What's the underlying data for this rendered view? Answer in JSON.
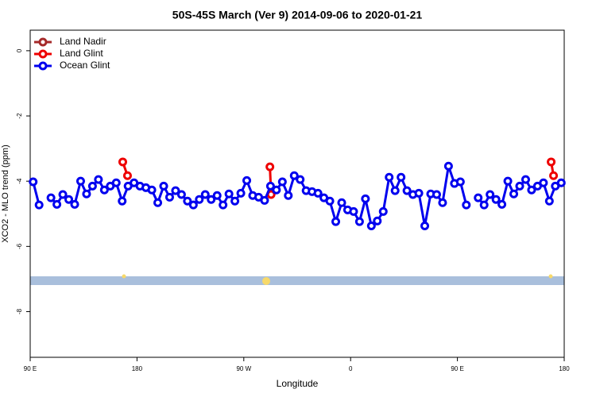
{
  "chart_data": {
    "type": "line",
    "title": "50S-45S March (Ver 9)   2014-09-06 to 2020-01-21",
    "x_label": "Longitude",
    "y_label": "XCO2 - MLO trend (ppm)",
    "xlim": [
      90,
      540
    ],
    "ylim": [
      -9.4,
      0.63
    ],
    "xticks": [
      {
        "value": 90,
        "label": "90 E"
      },
      180,
      {
        "value": 270,
        "label": "90 W"
      },
      {
        "value": 360,
        "label": "0"
      },
      {
        "value": 450,
        "label": "90 E"
      },
      {
        "value": 540,
        "label": "180"
      }
    ],
    "yticks": [
      0,
      -2,
      -4,
      -6,
      -8
    ],
    "legend_position": "top-left",
    "series": [
      {
        "name": "Land Nadir",
        "color": "#a52a2a",
        "x": [],
        "values": []
      },
      {
        "name": "Land Glint",
        "color": "#ee0000",
        "x": [
          168,
          172,
          null,
          292,
          293,
          null,
          529,
          531
        ],
        "values": [
          -3.41,
          -3.83,
          null,
          -3.56,
          -4.41,
          null,
          -3.41,
          -3.83
        ]
      },
      {
        "name": "Ocean Glint",
        "color": "#0000ee",
        "x": [
          92.5,
          97.5,
          null,
          107.5,
          112.5,
          117.5,
          122.5,
          127.5,
          132.5,
          137.5,
          142.5,
          147.5,
          152.5,
          157.5,
          162.5,
          167.5,
          172.5,
          177.5,
          182.5,
          187.5,
          192.5,
          197.5,
          202.5,
          207.5,
          212.5,
          217.5,
          222.5,
          227.5,
          232.5,
          237.5,
          242.5,
          247.5,
          252.5,
          257.5,
          262.5,
          267.5,
          272.5,
          277.5,
          282.5,
          287.5,
          292.5,
          297.5,
          302.5,
          307.5,
          312.5,
          317.5,
          322.5,
          327.5,
          332.5,
          337.5,
          342.5,
          347.5,
          352.5,
          357.5,
          362.5,
          367.5,
          372.5,
          377.5,
          382.5,
          387.5,
          392.5,
          397.5,
          402.5,
          407.5,
          412.5,
          417.5,
          422.5,
          427.5,
          432.5,
          437.5,
          442.5,
          447.5,
          452.5,
          457.5,
          null,
          467.5,
          472.5,
          477.5,
          482.5,
          487.5,
          492.5,
          497.5,
          502.5,
          507.5,
          512.5,
          517.5,
          522.5,
          527.5,
          532.5,
          537.5
        ],
        "values": [
          -4.02,
          -4.73,
          null,
          -4.51,
          -4.71,
          -4.41,
          -4.56,
          -4.71,
          -4.0,
          -4.39,
          -4.15,
          -3.95,
          -4.27,
          -4.15,
          -4.05,
          -4.61,
          -4.15,
          -4.05,
          -4.15,
          -4.2,
          -4.27,
          -4.66,
          -4.15,
          -4.49,
          -4.29,
          -4.41,
          -4.61,
          -4.73,
          -4.56,
          -4.41,
          -4.56,
          -4.44,
          -4.73,
          -4.39,
          -4.61,
          -4.37,
          -3.98,
          -4.44,
          -4.49,
          -4.59,
          -4.15,
          -4.27,
          -4.02,
          -4.44,
          -3.83,
          -3.95,
          -4.29,
          -4.32,
          -4.37,
          -4.51,
          -4.61,
          -5.24,
          -4.66,
          -4.88,
          -4.93,
          -5.24,
          -4.54,
          -5.37,
          -5.22,
          -4.93,
          -3.88,
          -4.29,
          -3.88,
          -4.29,
          -4.41,
          -4.37,
          -5.37,
          -4.39,
          -4.41,
          -4.66,
          -3.54,
          -4.07,
          -4.02,
          -4.73,
          null,
          -4.51,
          -4.73,
          -4.41,
          -4.56,
          -4.71,
          -4.0,
          -4.39,
          -4.15,
          -3.95,
          -4.27,
          -4.15,
          -4.05,
          -4.61,
          -4.15,
          -4.05
        ]
      }
    ]
  }
}
